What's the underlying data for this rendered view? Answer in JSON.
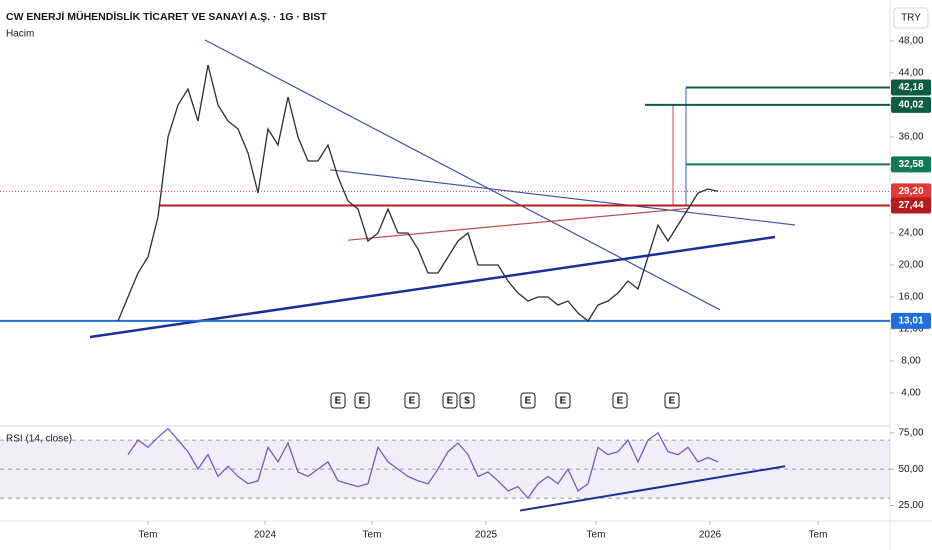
{
  "chart_data": [
    {
      "type": "line",
      "title": "CW ENERJİ MÜHENDİSLİK TİCARET VE SANAYİ A.Ş. · 1G · BIST",
      "subtitle": "Hacim",
      "currency": "TRY",
      "x": [
        0,
        1,
        2,
        3,
        4,
        5,
        6,
        7,
        8,
        9,
        10,
        11,
        12,
        13,
        14,
        15,
        16,
        17,
        18,
        19,
        20,
        21,
        22,
        23,
        24,
        25,
        26,
        27,
        28,
        29,
        30,
        31,
        32,
        33,
        34,
        35,
        36,
        37,
        38,
        39,
        40,
        41,
        42,
        43,
        44,
        45,
        46,
        47,
        48,
        49,
        50,
        51,
        52,
        53,
        54,
        55,
        56,
        57,
        58,
        59,
        60
      ],
      "series": [
        {
          "name": "CW",
          "color": "#2a2e39",
          "values": [
            13,
            16,
            19,
            21,
            26,
            36,
            40,
            42,
            38,
            45,
            40,
            38,
            37,
            34,
            29,
            37,
            35,
            41,
            36,
            33,
            33,
            35,
            31,
            28,
            27,
            23,
            24,
            27,
            24,
            24,
            22,
            19,
            19,
            21,
            23,
            24,
            20,
            20,
            20,
            18,
            16.5,
            15.5,
            16,
            16,
            15,
            15.5,
            14,
            13,
            15,
            15.5,
            16.5,
            18,
            17,
            21,
            25,
            23,
            25,
            27,
            29,
            29.5,
            29.2
          ]
        }
      ],
      "xlim": [
        -11.8,
        77.2
      ],
      "ylim": [
        0,
        53.125
      ],
      "yticks": [
        {
          "value": 4,
          "label": "4,00"
        },
        {
          "value": 8,
          "label": "8,00"
        },
        {
          "value": 12,
          "label": "12,00"
        },
        {
          "value": 16,
          "label": "16,00"
        },
        {
          "value": 20,
          "label": "20,00"
        },
        {
          "value": 24,
          "label": "24,00"
        },
        {
          "value": 28,
          "label": "28,00"
        },
        {
          "value": 32,
          "label": "32,00"
        },
        {
          "value": 36,
          "label": "36,00"
        },
        {
          "value": 40,
          "label": "40,00"
        },
        {
          "value": 44,
          "label": "44,00"
        },
        {
          "value": 48,
          "label": "48,00"
        }
      ],
      "levels": [
        {
          "value": 42.18,
          "label": "42,18",
          "color": "#0d5c40",
          "from": 56.8
        },
        {
          "value": 40.02,
          "label": "40,02",
          "color": "#0d5c40",
          "from": 52.7
        },
        {
          "value": 32.58,
          "label": "32,58",
          "color": "#117a55",
          "from": 56.8
        },
        {
          "value": 29.2,
          "label": "29,20",
          "color": "#e53935",
          "from": -11.8,
          "dashed": true
        },
        {
          "value": 27.44,
          "label": "27,44",
          "color": "#b71c1c",
          "from": 4.2
        },
        {
          "value": 13.01,
          "label": "13,01",
          "color": "#1e6fd9",
          "from": -11.8
        }
      ],
      "trendlines": [
        {
          "x": [
            8.7,
            60.2
          ],
          "y": [
            48.125,
            14.4
          ],
          "color": "#3a56a8"
        },
        {
          "x": [
            -2.8,
            65.7
          ],
          "y": [
            11,
            23.5
          ],
          "color": "#1a2f9a",
          "width": 2.5
        },
        {
          "x": [
            21.2,
            67.7
          ],
          "y": [
            31.9,
            25
          ],
          "color": "#3a56a8"
        },
        {
          "x": [
            23,
            57.2
          ],
          "y": [
            23.1,
            27.1
          ],
          "color": "#c0504d"
        },
        {
          "x": [
            55.5,
            55.5
          ],
          "y": [
            40.02,
            27.44
          ],
          "color": "#e06060"
        },
        {
          "x": [
            56.8,
            56.8
          ],
          "y": [
            42.18,
            27.44
          ],
          "color": "#4a7fe0"
        }
      ],
      "events": [
        {
          "x": 22,
          "label": "E"
        },
        {
          "x": 24.4,
          "label": "E"
        },
        {
          "x": 29.4,
          "label": "E"
        },
        {
          "x": 33.2,
          "label": "E"
        },
        {
          "x": 34.9,
          "label": "$"
        },
        {
          "x": 41,
          "label": "E"
        },
        {
          "x": 44.5,
          "label": "E"
        },
        {
          "x": 50.2,
          "label": "E"
        },
        {
          "x": 55.4,
          "label": "E"
        }
      ]
    },
    {
      "type": "line",
      "title": "RSI (14, close)",
      "x": [
        0,
        1,
        2,
        3,
        4,
        5,
        6,
        7,
        8,
        9,
        10,
        11,
        12,
        13,
        14,
        15,
        16,
        17,
        18,
        19,
        20,
        21,
        22,
        23,
        24,
        25,
        26,
        27,
        28,
        29,
        30,
        31,
        32,
        33,
        34,
        35,
        36,
        37,
        38,
        39,
        40,
        41,
        42,
        43,
        44,
        45,
        46,
        47,
        48,
        49,
        50,
        51,
        52,
        53,
        54,
        55,
        56,
        57,
        58,
        59,
        60
      ],
      "series": [
        {
          "name": "RSI",
          "color": "#7e57c2",
          "values": [
            null,
            60,
            70,
            65,
            72,
            78,
            70,
            62,
            50,
            60,
            45,
            52,
            45,
            40,
            42,
            65,
            55,
            68,
            48,
            45,
            50,
            55,
            42,
            40,
            38,
            40,
            65,
            55,
            50,
            45,
            42,
            40,
            50,
            62,
            68,
            60,
            45,
            48,
            42,
            35,
            38,
            30,
            40,
            45,
            40,
            50,
            35,
            40,
            65,
            60,
            62,
            70,
            55,
            70,
            75,
            62,
            60,
            65,
            55,
            58,
            55
          ]
        }
      ],
      "xlim": [
        -11.8,
        77.2
      ],
      "ylim": [
        15,
        79
      ],
      "yticks": [
        {
          "value": 25,
          "label": "25,00"
        },
        {
          "value": 50,
          "label": "50,00"
        },
        {
          "value": 75,
          "label": "75,00"
        }
      ],
      "bands": {
        "upper": 70,
        "middle": 50,
        "lower": 30,
        "color": "#7e57c2"
      },
      "trendlines": [
        {
          "x": [
            40.2,
            66.7
          ],
          "y": [
            21.5,
            52
          ],
          "color": "#1a2f9a",
          "width": 2
        }
      ],
      "xticks": [
        {
          "value": 3,
          "label": "Tem"
        },
        {
          "value": 14.7,
          "label": "2024"
        },
        {
          "value": 25.4,
          "label": "Tem"
        },
        {
          "value": 36.8,
          "label": "2025"
        },
        {
          "value": 47.8,
          "label": "Tem"
        },
        {
          "value": 59.2,
          "label": "2026"
        },
        {
          "value": 70,
          "label": "Tem"
        }
      ]
    }
  ]
}
